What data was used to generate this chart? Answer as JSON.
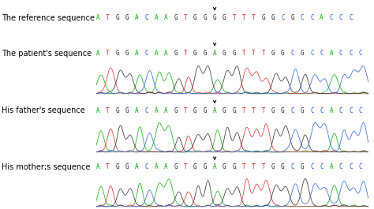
{
  "rows": [
    {
      "label": "The reference sequence",
      "sequence": "ATGGACAAGTGGGGTTTGGCGCCACCC",
      "arrow_index": 12,
      "has_chromatogram": false
    },
    {
      "label": "The patient's sequence",
      "sequence": "ATGGACAAGTGGAGGTTTGGCGCCACCC",
      "arrow_index": 12,
      "has_chromatogram": true,
      "chrom_seed": 101
    },
    {
      "label": "His father's sequence",
      "sequence": "ATGGACAAGTGGAGGTTTGGCGCCACCC",
      "arrow_index": 12,
      "has_chromatogram": true,
      "chrom_seed": 202
    },
    {
      "label": "His mother;s sequence",
      "sequence": "ATGGACAAGTGGAGGTTTGGCGCCACCC",
      "arrow_index": 12,
      "has_chromatogram": true,
      "chrom_seed": 303
    }
  ],
  "base_colors": {
    "A": "#00aa00",
    "T": "#dd2222",
    "G": "#222222",
    "C": "#2255dd"
  },
  "bg_color": "#ffffff",
  "fig_width": 4.74,
  "fig_height": 2.65,
  "dpi": 100
}
